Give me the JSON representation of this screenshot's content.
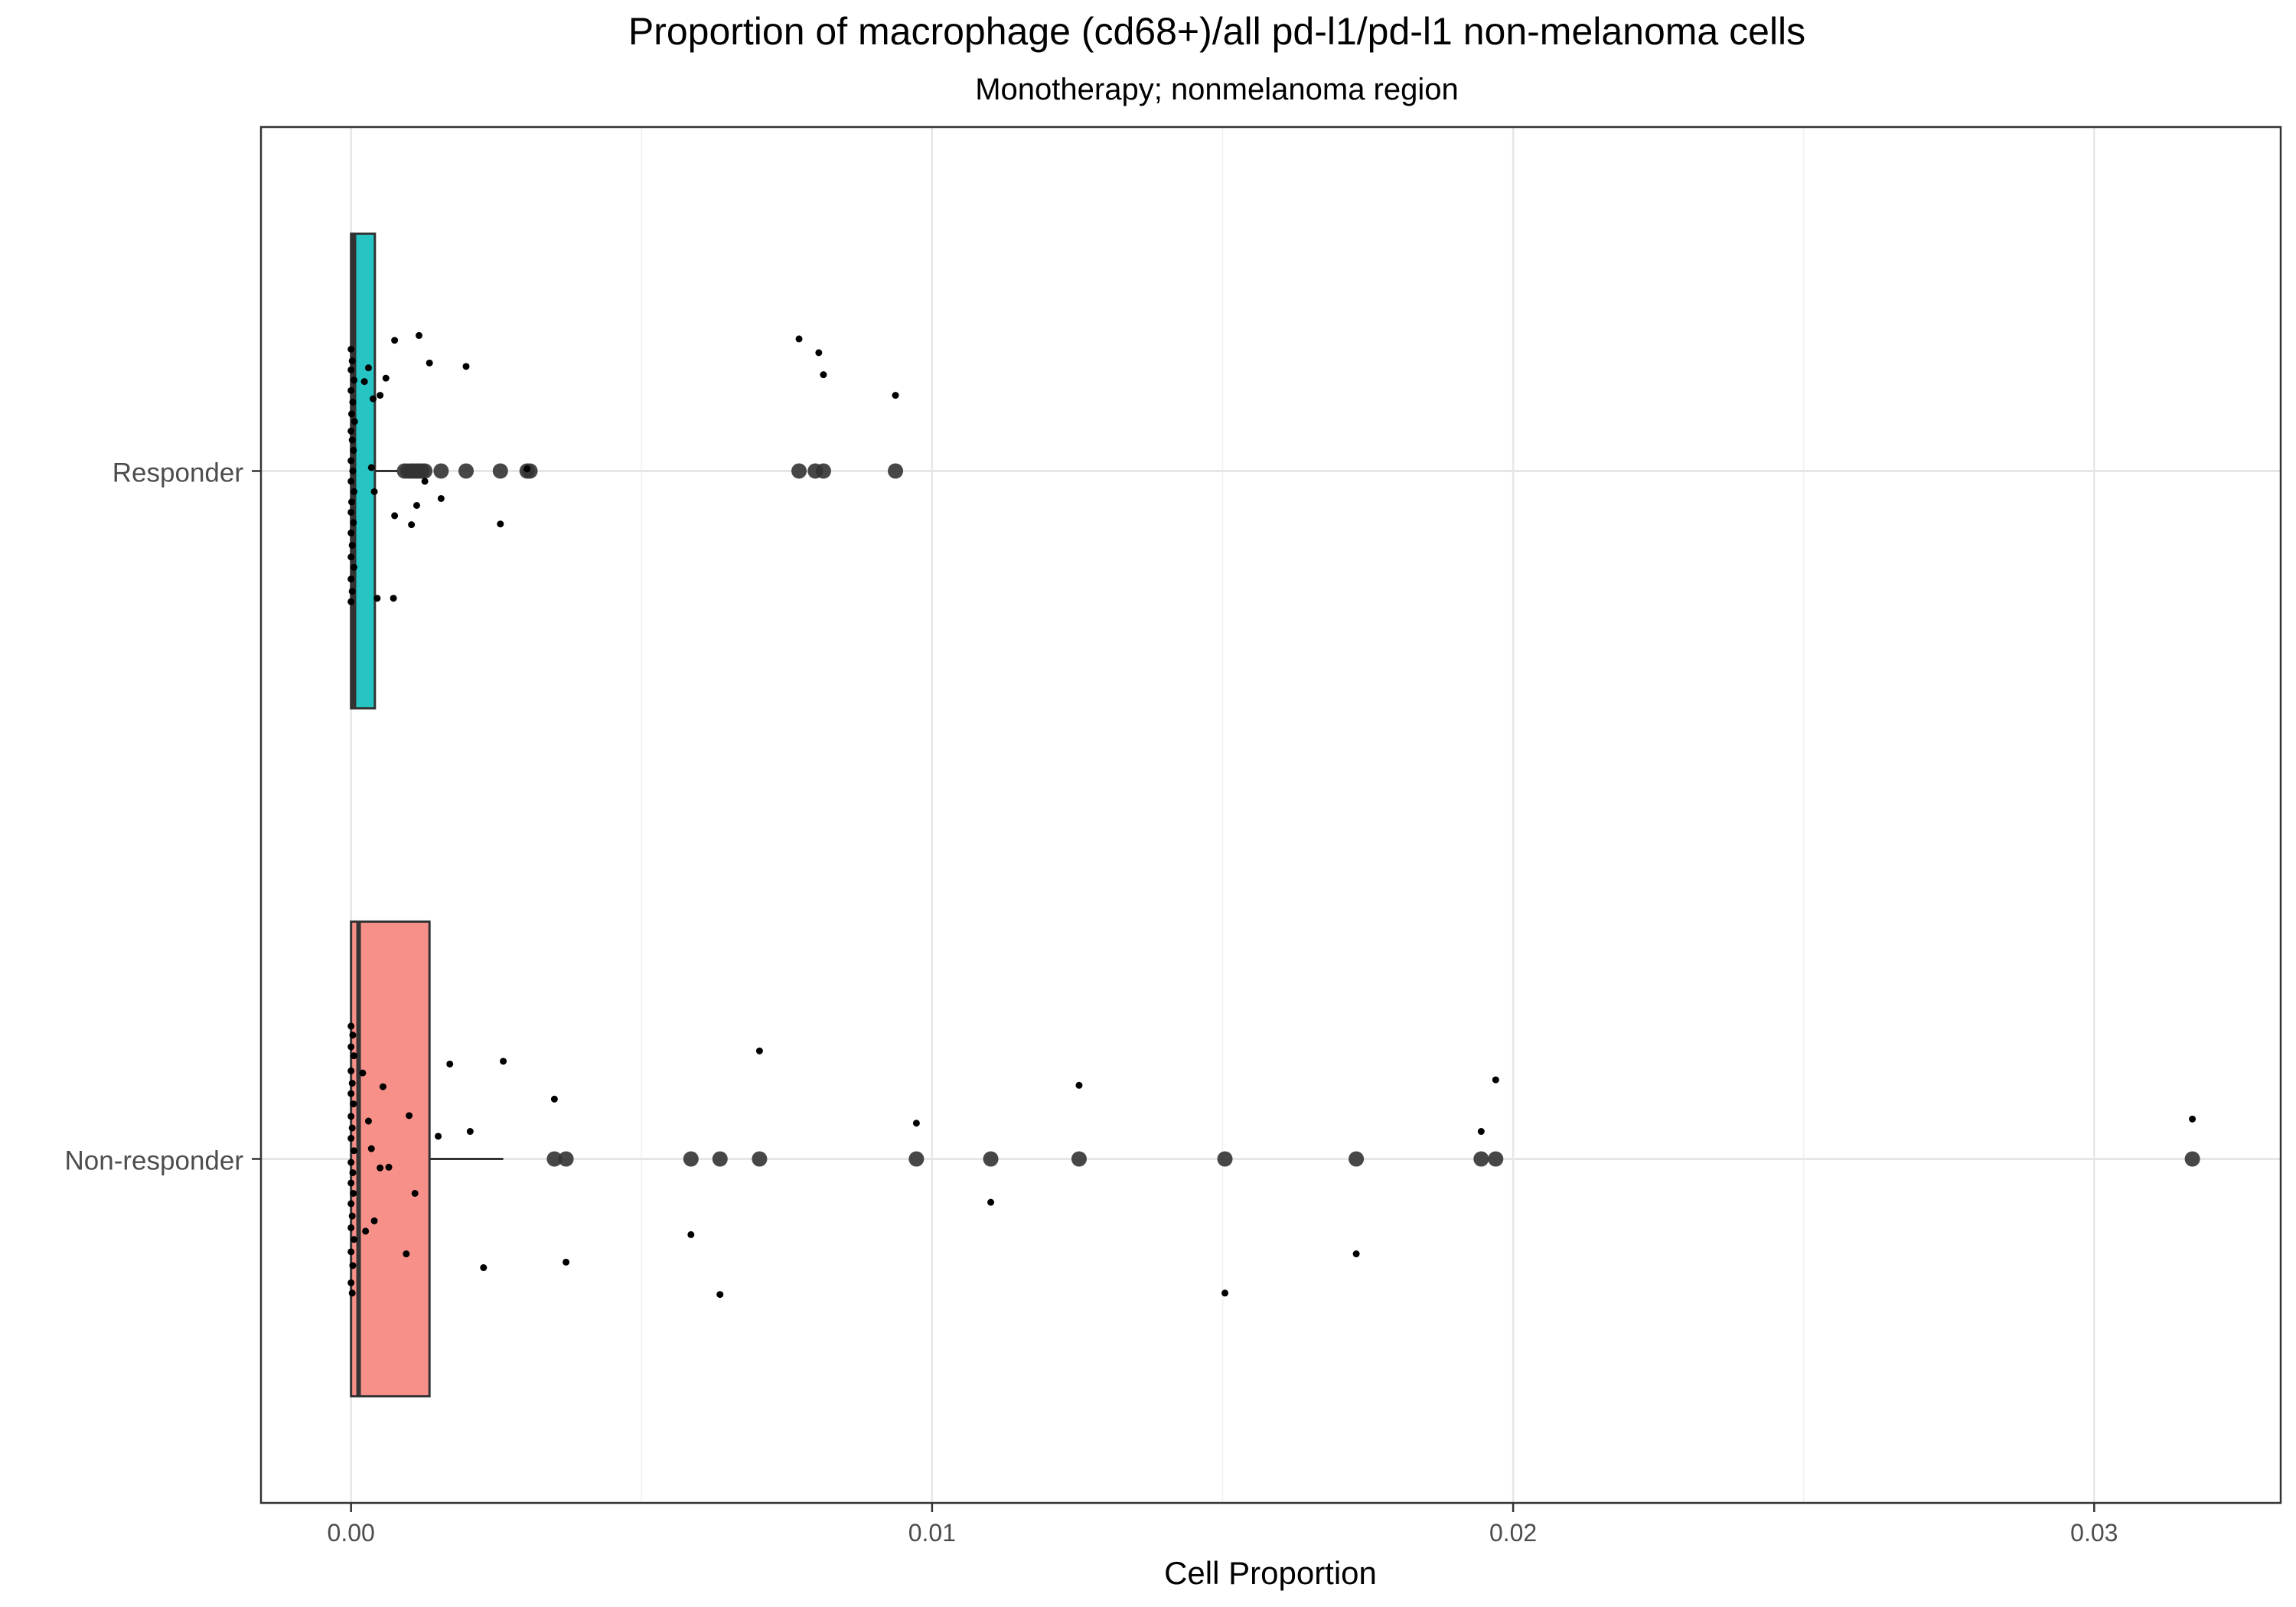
{
  "chart_data": {
    "type": "boxplot",
    "orientation": "horizontal",
    "title": "Proportion of macrophage (cd68+)/all pd-l1/pd-l1 non-melanoma cells",
    "subtitle": "Monotherapy; nonmelanoma region",
    "xlabel": "Cell Proportion",
    "ylabel": "",
    "xlim": [
      -0.00155,
      0.03321
    ],
    "x_ticks": [
      0.0,
      0.01,
      0.02,
      0.03
    ],
    "x_tick_labels": [
      "0.00",
      "0.01",
      "0.02",
      "0.03"
    ],
    "grid": true,
    "legend": "none",
    "categories": [
      "Responder",
      "Non-responder"
    ],
    "series": [
      {
        "name": "Responder",
        "color": "#27c4c4",
        "box": {
          "min": 0.0,
          "q1": 0.0,
          "median": 5e-05,
          "q3": 0.00041,
          "max": 0.0008
        },
        "outliers": [
          0.00092,
          0.00098,
          0.00104,
          0.00108,
          0.00113,
          0.00117,
          0.00122,
          0.00127,
          0.00155,
          0.00198,
          0.00257,
          0.00303,
          0.00308,
          0.00771,
          0.00799,
          0.00813,
          0.00937
        ],
        "jitter": [
          {
            "x": 0.0,
            "dy": -0.177
          },
          {
            "x": 2e-05,
            "dy": -0.16
          },
          {
            "x": 0.0,
            "dy": -0.147
          },
          {
            "x": 5e-05,
            "dy": -0.132
          },
          {
            "x": 0.0,
            "dy": -0.117
          },
          {
            "x": 3e-05,
            "dy": -0.1
          },
          {
            "x": 1e-05,
            "dy": -0.083
          },
          {
            "x": 6e-05,
            "dy": -0.072
          },
          {
            "x": 0.0,
            "dy": -0.058
          },
          {
            "x": 2e-05,
            "dy": -0.045
          },
          {
            "x": 4e-05,
            "dy": -0.03
          },
          {
            "x": 0.0,
            "dy": -0.015
          },
          {
            "x": 3e-05,
            "dy": 0.0
          },
          {
            "x": 0.0,
            "dy": 0.015
          },
          {
            "x": 5e-05,
            "dy": 0.03
          },
          {
            "x": 1e-05,
            "dy": 0.045
          },
          {
            "x": 0.0,
            "dy": 0.06
          },
          {
            "x": 4e-05,
            "dy": 0.075
          },
          {
            "x": 0.0,
            "dy": 0.09
          },
          {
            "x": 2e-05,
            "dy": 0.108
          },
          {
            "x": 0.0,
            "dy": 0.125
          },
          {
            "x": 5e-05,
            "dy": 0.14
          },
          {
            "x": 0.0,
            "dy": 0.157
          },
          {
            "x": 2e-05,
            "dy": 0.175
          },
          {
            "x": 0.0,
            "dy": 0.19
          },
          {
            "x": 0.00023,
            "dy": -0.13
          },
          {
            "x": 0.0003,
            "dy": -0.15
          },
          {
            "x": 0.00035,
            "dy": -0.005
          },
          {
            "x": 0.00038,
            "dy": -0.105
          },
          {
            "x": 0.0004,
            "dy": 0.03
          },
          {
            "x": 0.00045,
            "dy": 0.185
          },
          {
            "x": 0.0005,
            "dy": -0.11
          },
          {
            "x": 0.0006,
            "dy": -0.135
          },
          {
            "x": 0.00073,
            "dy": 0.185
          },
          {
            "x": 0.00075,
            "dy": -0.19
          },
          {
            "x": 0.00075,
            "dy": 0.065
          },
          {
            "x": 0.00104,
            "dy": 0.078
          },
          {
            "x": 0.00113,
            "dy": 0.05
          },
          {
            "x": 0.00117,
            "dy": -0.197
          },
          {
            "x": 0.00127,
            "dy": 0.015
          },
          {
            "x": 0.00135,
            "dy": -0.157
          },
          {
            "x": 0.00155,
            "dy": 0.04
          },
          {
            "x": 0.00198,
            "dy": -0.152
          },
          {
            "x": 0.00257,
            "dy": 0.077
          },
          {
            "x": 0.00303,
            "dy": -0.003
          },
          {
            "x": 0.00771,
            "dy": -0.192
          },
          {
            "x": 0.00805,
            "dy": -0.172
          },
          {
            "x": 0.00813,
            "dy": -0.14
          },
          {
            "x": 0.00937,
            "dy": -0.11
          }
        ]
      },
      {
        "name": "Non-responder",
        "color": "#f8908a",
        "box": {
          "min": 0.0,
          "q1": 0.0,
          "median": 0.00013,
          "q3": 0.00135,
          "max": 0.00262
        },
        "outliers": [
          0.0035,
          0.0037,
          0.00585,
          0.00635,
          0.00703,
          0.00973,
          0.01101,
          0.01253,
          0.01504,
          0.0173,
          0.01945,
          0.0197,
          0.03169
        ],
        "jitter": [
          {
            "x": 0.0,
            "dy": -0.193
          },
          {
            "x": 3e-05,
            "dy": -0.18
          },
          {
            "x": 0.0,
            "dy": -0.163
          },
          {
            "x": 5e-05,
            "dy": -0.15
          },
          {
            "x": 0.0,
            "dy": -0.128
          },
          {
            "x": 2e-05,
            "dy": -0.11
          },
          {
            "x": 0.0,
            "dy": -0.095
          },
          {
            "x": 4e-05,
            "dy": -0.08
          },
          {
            "x": 0.0,
            "dy": -0.062
          },
          {
            "x": 2e-05,
            "dy": -0.045
          },
          {
            "x": 0.0,
            "dy": -0.03
          },
          {
            "x": 5e-05,
            "dy": -0.012
          },
          {
            "x": 0.0,
            "dy": 0.005
          },
          {
            "x": 3e-05,
            "dy": 0.02
          },
          {
            "x": 0.0,
            "dy": 0.035
          },
          {
            "x": 4e-05,
            "dy": 0.05
          },
          {
            "x": 0.0,
            "dy": 0.065
          },
          {
            "x": 2e-05,
            "dy": 0.083
          },
          {
            "x": 0.0,
            "dy": 0.1
          },
          {
            "x": 5e-05,
            "dy": 0.117
          },
          {
            "x": 0.0,
            "dy": 0.135
          },
          {
            "x": 3e-05,
            "dy": 0.155
          },
          {
            "x": 0.0,
            "dy": 0.18
          },
          {
            "x": 2e-05,
            "dy": 0.195
          },
          {
            "x": 0.0002,
            "dy": -0.125
          },
          {
            "x": 0.00025,
            "dy": 0.105
          },
          {
            "x": 0.0003,
            "dy": -0.055
          },
          {
            "x": 0.00035,
            "dy": -0.015
          },
          {
            "x": 0.0004,
            "dy": 0.09
          },
          {
            "x": 0.0005,
            "dy": 0.013
          },
          {
            "x": 0.00055,
            "dy": -0.105
          },
          {
            "x": 0.00065,
            "dy": 0.012
          },
          {
            "x": 0.00095,
            "dy": 0.138
          },
          {
            "x": 0.001,
            "dy": -0.063
          },
          {
            "x": 0.0011,
            "dy": 0.05
          },
          {
            "x": 0.0015,
            "dy": -0.033
          },
          {
            "x": 0.0017,
            "dy": -0.138
          },
          {
            "x": 0.00205,
            "dy": -0.04
          },
          {
            "x": 0.00228,
            "dy": 0.158
          },
          {
            "x": 0.00262,
            "dy": -0.142
          },
          {
            "x": 0.0035,
            "dy": -0.087
          },
          {
            "x": 0.0037,
            "dy": 0.15
          },
          {
            "x": 0.00585,
            "dy": 0.11
          },
          {
            "x": 0.00635,
            "dy": 0.197
          },
          {
            "x": 0.00703,
            "dy": -0.157
          },
          {
            "x": 0.00973,
            "dy": -0.052
          },
          {
            "x": 0.01101,
            "dy": 0.063
          },
          {
            "x": 0.01253,
            "dy": -0.107
          },
          {
            "x": 0.01504,
            "dy": 0.195
          },
          {
            "x": 0.0173,
            "dy": 0.138
          },
          {
            "x": 0.01945,
            "dy": -0.04
          },
          {
            "x": 0.0197,
            "dy": -0.115
          },
          {
            "x": 0.03169,
            "dy": -0.058
          }
        ]
      }
    ]
  }
}
